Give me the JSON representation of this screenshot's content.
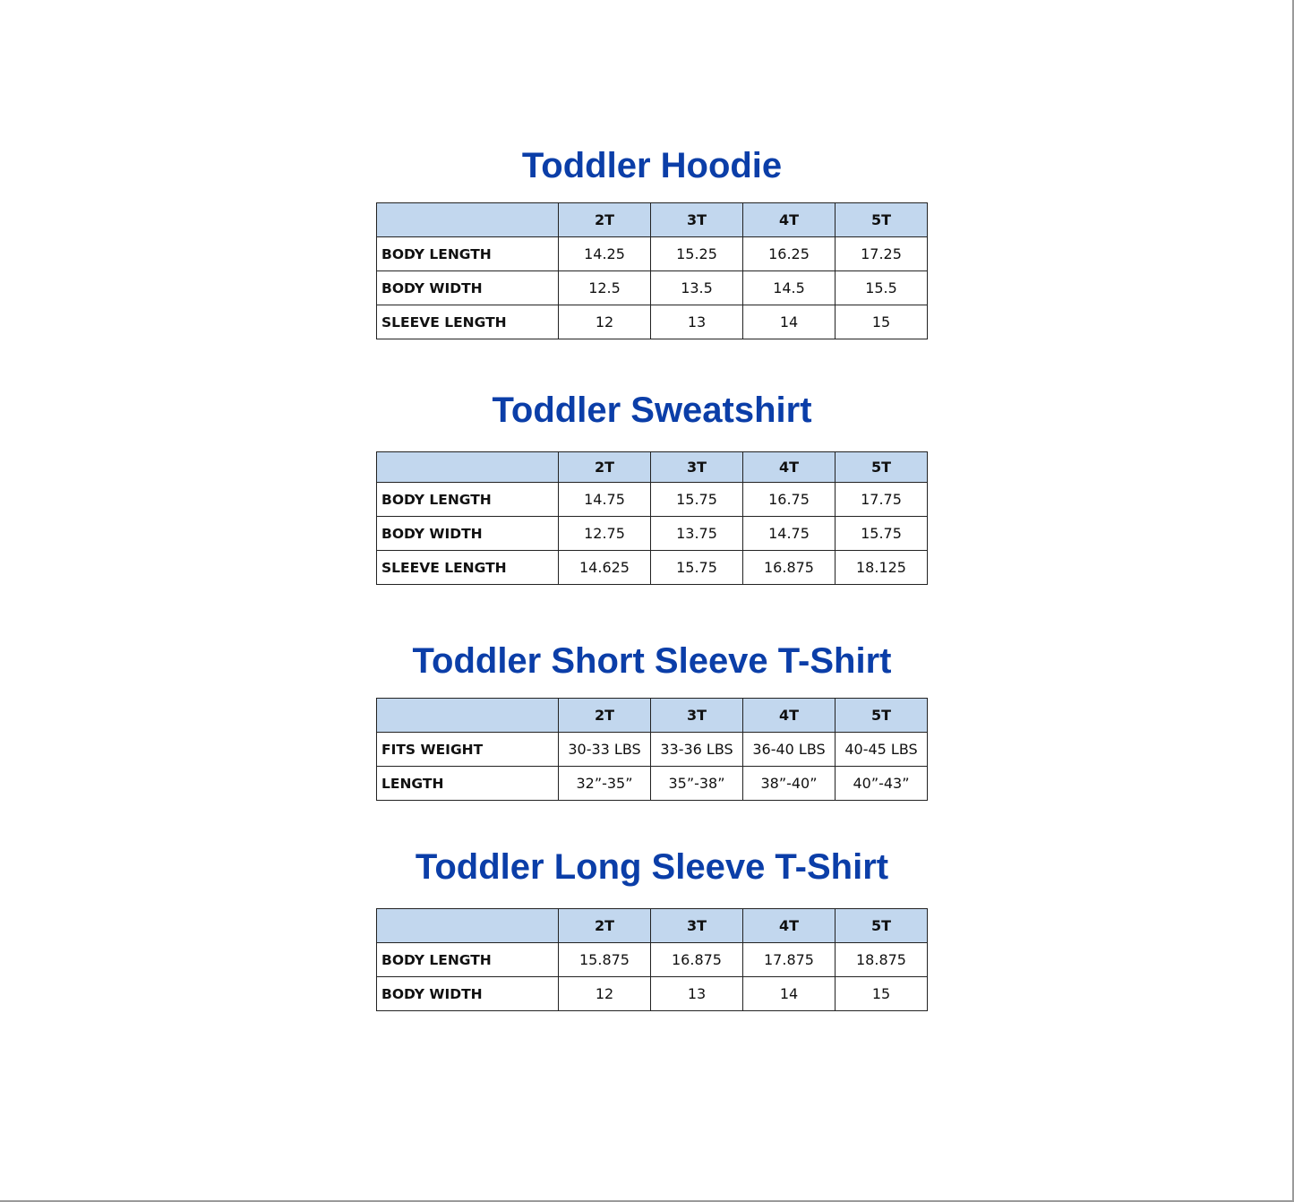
{
  "colors": {
    "title": "#0b3ea8",
    "header_bg": "#c2d7ee",
    "border": "#222222"
  },
  "sections": [
    {
      "title": "Toddler Hoodie",
      "headers": [
        "",
        "2T",
        "3T",
        "4T",
        "5T"
      ],
      "rows": [
        [
          "BODY LENGTH",
          "14.25",
          "15.25",
          "16.25",
          "17.25"
        ],
        [
          "BODY WIDTH",
          "12.5",
          "13.5",
          "14.5",
          "15.5"
        ],
        [
          "SLEEVE LENGTH",
          "12",
          "13",
          "14",
          "15"
        ]
      ]
    },
    {
      "title": "Toddler Sweatshirt",
      "headers": [
        "",
        "2T",
        "3T",
        "4T",
        "5T"
      ],
      "rows": [
        [
          "BODY LENGTH",
          "14.75",
          "15.75",
          "16.75",
          "17.75"
        ],
        [
          "BODY WIDTH",
          "12.75",
          "13.75",
          "14.75",
          "15.75"
        ],
        [
          "SLEEVE LENGTH",
          "14.625",
          "15.75",
          "16.875",
          "18.125"
        ]
      ]
    },
    {
      "title": "Toddler Short Sleeve T-Shirt",
      "headers": [
        "",
        "2T",
        "3T",
        "4T",
        "5T"
      ],
      "rows": [
        [
          "FITS WEIGHT",
          "30-33 LBS",
          "33-36 LBS",
          "36-40 LBS",
          "40-45 LBS"
        ],
        [
          "LENGTH",
          "32”-35”",
          "35”-38”",
          "38”-40”",
          "40”-43”"
        ]
      ]
    },
    {
      "title": "Toddler Long Sleeve T-Shirt",
      "headers": [
        "",
        "2T",
        "3T",
        "4T",
        "5T"
      ],
      "rows": [
        [
          "BODY LENGTH",
          "15.875",
          "16.875",
          "17.875",
          "18.875"
        ],
        [
          "BODY WIDTH",
          "12",
          "13",
          "14",
          "15"
        ]
      ]
    }
  ]
}
